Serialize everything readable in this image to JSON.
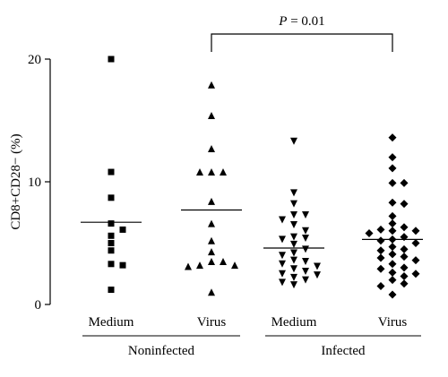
{
  "chart_data": {
    "type": "scatter",
    "ylabel": "CD8+CD28− (%)",
    "ylim": [
      0,
      20
    ],
    "yticks": [
      0,
      10,
      20
    ],
    "categories": [
      "Medium",
      "Virus",
      "Medium",
      "Virus"
    ],
    "groups": [
      {
        "label": "Noninfected",
        "categories": [
          0,
          1
        ]
      },
      {
        "label": "Infected",
        "categories": [
          2,
          3
        ]
      }
    ],
    "series": [
      {
        "category": "Medium",
        "group": "Noninfected",
        "marker": "square",
        "mean": 6.7,
        "values": [
          20.0,
          10.8,
          8.7,
          6.6,
          6.1,
          5.6,
          5.0,
          4.4,
          3.3,
          3.2,
          1.2
        ]
      },
      {
        "category": "Virus",
        "group": "Noninfected",
        "marker": "triangle-up",
        "mean": 7.7,
        "values": [
          17.9,
          15.4,
          12.7,
          10.8,
          10.8,
          10.8,
          8.4,
          6.6,
          5.2,
          4.3,
          3.5,
          3.5,
          3.2,
          3.2,
          3.1,
          1.0
        ]
      },
      {
        "category": "Medium",
        "group": "Infected",
        "marker": "triangle-down",
        "mean": 4.6,
        "values": [
          13.3,
          9.1,
          8.2,
          7.3,
          7.3,
          6.9,
          6.5,
          6.0,
          5.5,
          5.4,
          5.3,
          4.9,
          4.5,
          4.2,
          4.0,
          3.6,
          3.5,
          3.3,
          3.1,
          2.9,
          2.7,
          2.5,
          2.4,
          2.2,
          2.0,
          1.8,
          1.6
        ]
      },
      {
        "category": "Virus",
        "group": "Infected",
        "marker": "diamond",
        "mean": 5.3,
        "values": [
          13.6,
          12.0,
          11.1,
          9.9,
          9.9,
          8.3,
          8.2,
          7.2,
          6.6,
          6.3,
          6.1,
          6.0,
          6.0,
          5.8,
          5.5,
          5.3,
          5.2,
          5.0,
          4.7,
          4.5,
          4.4,
          4.1,
          3.9,
          3.8,
          3.6,
          3.3,
          3.0,
          2.9,
          2.6,
          2.5,
          2.3,
          2.0,
          1.7,
          1.5,
          0.8
        ]
      }
    ],
    "annotation": {
      "text_italic": "P",
      "text_rest": " = 0.01",
      "from_category": 1,
      "to_category": 3
    }
  }
}
